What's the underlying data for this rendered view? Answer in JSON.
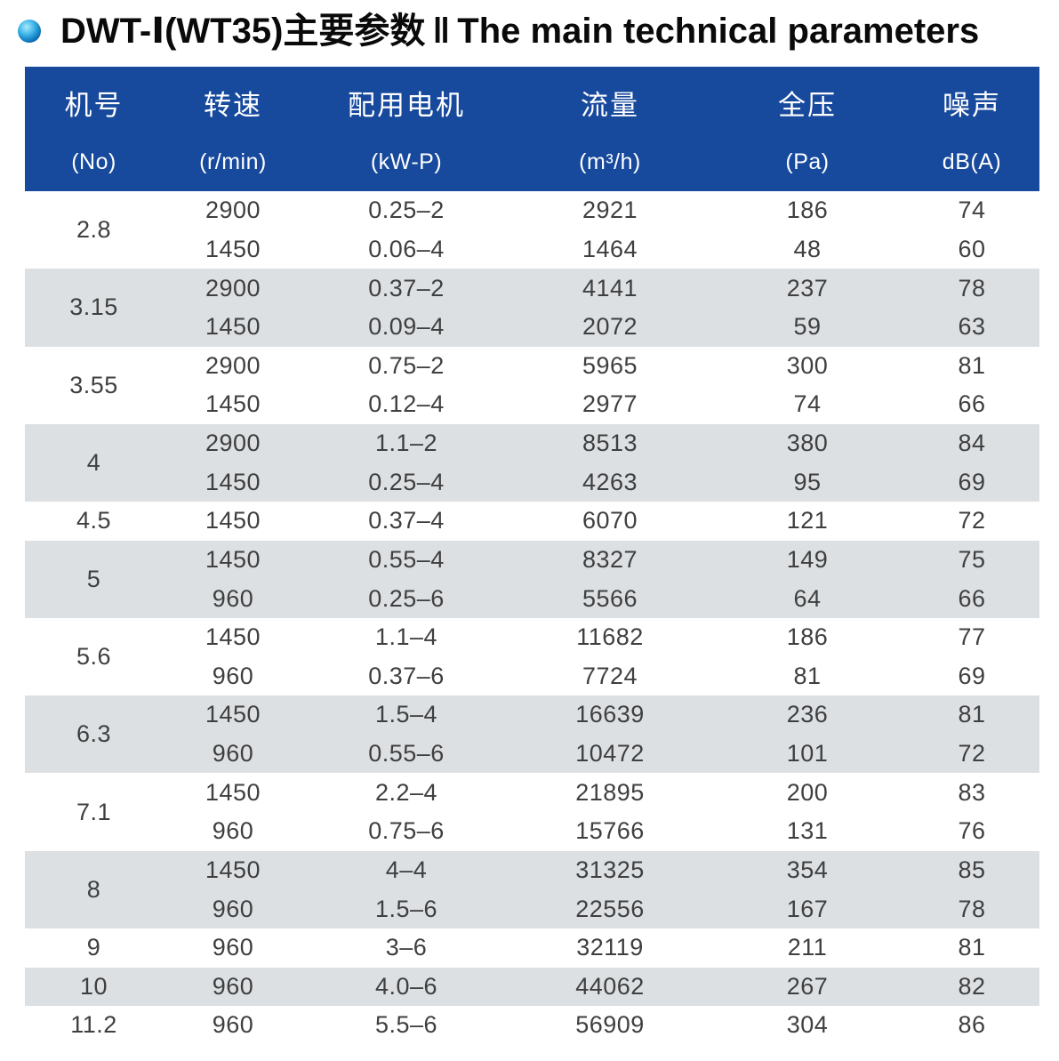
{
  "colors": {
    "header_bg": "#17499d",
    "band_gray": "#dde0e3",
    "header_text": "#ffffff",
    "body_text": "#3f3f3f",
    "title_text": "#0a0a0a",
    "bullet_blue": "#0a5ba5"
  },
  "title": {
    "product": "DWT-Ⅰ(WT35)主要参数",
    "separator": "‖",
    "english": "The main technical parameters"
  },
  "table": {
    "columns": [
      {
        "zh": "机号",
        "en": "(No)"
      },
      {
        "zh": "转速",
        "en": "(r/min)"
      },
      {
        "zh": "配用电机",
        "en": "(kW-P)"
      },
      {
        "zh": "流量",
        "en": "(m³/h)"
      },
      {
        "zh": "全压",
        "en": "(Pa)"
      },
      {
        "zh": "噪声",
        "en": "dB(A)"
      }
    ],
    "rows": [
      {
        "no": "2.8",
        "specs": [
          {
            "rpm": "2900",
            "motor": "0.25–2",
            "flow": "2921",
            "pressure": "186",
            "noise": "74"
          },
          {
            "rpm": "1450",
            "motor": "0.06–4",
            "flow": "1464",
            "pressure": "48",
            "noise": "60"
          }
        ]
      },
      {
        "no": "3.15",
        "specs": [
          {
            "rpm": "2900",
            "motor": "0.37–2",
            "flow": "4141",
            "pressure": "237",
            "noise": "78"
          },
          {
            "rpm": "1450",
            "motor": "0.09–4",
            "flow": "2072",
            "pressure": "59",
            "noise": "63"
          }
        ]
      },
      {
        "no": "3.55",
        "specs": [
          {
            "rpm": "2900",
            "motor": "0.75–2",
            "flow": "5965",
            "pressure": "300",
            "noise": "81"
          },
          {
            "rpm": "1450",
            "motor": "0.12–4",
            "flow": "2977",
            "pressure": "74",
            "noise": "66"
          }
        ]
      },
      {
        "no": "4",
        "specs": [
          {
            "rpm": "2900",
            "motor": "1.1–2",
            "flow": "8513",
            "pressure": "380",
            "noise": "84"
          },
          {
            "rpm": "1450",
            "motor": "0.25–4",
            "flow": "4263",
            "pressure": "95",
            "noise": "69"
          }
        ]
      },
      {
        "no": "4.5",
        "specs": [
          {
            "rpm": "1450",
            "motor": "0.37–4",
            "flow": "6070",
            "pressure": "121",
            "noise": "72"
          }
        ]
      },
      {
        "no": "5",
        "specs": [
          {
            "rpm": "1450",
            "motor": "0.55–4",
            "flow": "8327",
            "pressure": "149",
            "noise": "75"
          },
          {
            "rpm": "960",
            "motor": "0.25–6",
            "flow": "5566",
            "pressure": "64",
            "noise": "66"
          }
        ]
      },
      {
        "no": "5.6",
        "specs": [
          {
            "rpm": "1450",
            "motor": "1.1–4",
            "flow": "11682",
            "pressure": "186",
            "noise": "77"
          },
          {
            "rpm": "960",
            "motor": "0.37–6",
            "flow": "7724",
            "pressure": "81",
            "noise": "69"
          }
        ]
      },
      {
        "no": "6.3",
        "specs": [
          {
            "rpm": "1450",
            "motor": "1.5–4",
            "flow": "16639",
            "pressure": "236",
            "noise": "81"
          },
          {
            "rpm": "960",
            "motor": "0.55–6",
            "flow": "10472",
            "pressure": "101",
            "noise": "72"
          }
        ]
      },
      {
        "no": "7.1",
        "specs": [
          {
            "rpm": "1450",
            "motor": "2.2–4",
            "flow": "21895",
            "pressure": "200",
            "noise": "83"
          },
          {
            "rpm": "960",
            "motor": "0.75–6",
            "flow": "15766",
            "pressure": "131",
            "noise": "76"
          }
        ]
      },
      {
        "no": "8",
        "specs": [
          {
            "rpm": "1450",
            "motor": "4–4",
            "flow": "31325",
            "pressure": "354",
            "noise": "85"
          },
          {
            "rpm": "960",
            "motor": "1.5–6",
            "flow": "22556",
            "pressure": "167",
            "noise": "78"
          }
        ]
      },
      {
        "no": "9",
        "specs": [
          {
            "rpm": "960",
            "motor": "3–6",
            "flow": "32119",
            "pressure": "211",
            "noise": "81"
          }
        ]
      },
      {
        "no": "10",
        "specs": [
          {
            "rpm": "960",
            "motor": "4.0–6",
            "flow": "44062",
            "pressure": "267",
            "noise": "82"
          }
        ]
      },
      {
        "no": "11.2",
        "specs": [
          {
            "rpm": "960",
            "motor": "5.5–6",
            "flow": "56909",
            "pressure": "304",
            "noise": "86"
          }
        ]
      }
    ]
  }
}
